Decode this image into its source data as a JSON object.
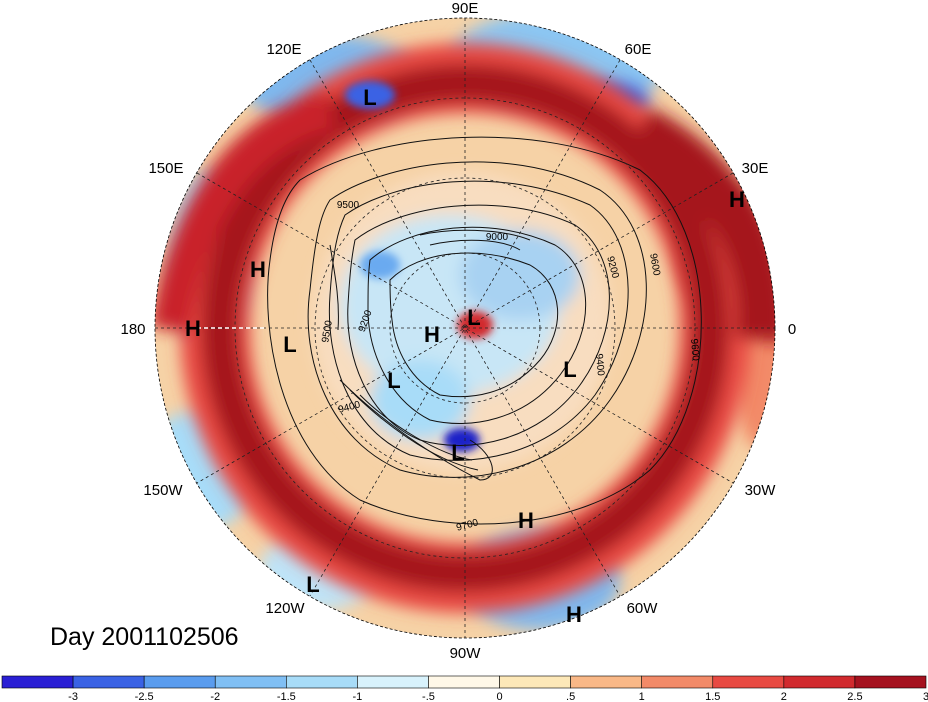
{
  "map": {
    "title": "Day 2001102506",
    "projection": "polar stereographic, north pole",
    "longitude_labels": {
      "lon_90e": "90E",
      "lon_60e": "60E",
      "lon_30e": "30E",
      "lon_0": "0",
      "lon_30w": "30W",
      "lon_60w": "60W",
      "lon_90w": "90W",
      "lon_120w": "120W",
      "lon_150w": "150W",
      "lon_180": "180",
      "lon_150e": "150E",
      "lon_120e": "120E"
    },
    "pressure_centers": {
      "h1": "H",
      "h2": "H",
      "h3": "H",
      "h4": "H",
      "h5": "H",
      "h6": "H",
      "l1": "L",
      "l2": "L",
      "l3": "L",
      "l4": "L",
      "l5": "L",
      "l6": "L",
      "l7": "L"
    },
    "contour_labels": {
      "c1": "9500",
      "c2": "9000",
      "c3": "9600",
      "c4": "9200",
      "c5": "9400",
      "c6": "9600",
      "c7": "9500",
      "c8": "9200",
      "c9": "9400",
      "c10": "9700"
    },
    "colors": {
      "strong_positive": "#a5121f",
      "strong_negative": "#1a22c8",
      "neutral": "#fdf6e0"
    }
  },
  "colorbar": {
    "tick_labels": [
      "-3",
      "-2.5",
      "-2",
      "-1.5",
      "-1",
      "-.5",
      "0",
      ".5",
      "1",
      "1.5",
      "2",
      "2.5",
      "3"
    ],
    "colors": [
      "#2a1fd4",
      "#3a62e4",
      "#5a9cee",
      "#80bff4",
      "#a8dcf8",
      "#d8f2fc",
      "#fff8e8",
      "#fde8b8",
      "#f9b887",
      "#f28a68",
      "#e84a42",
      "#d12a2e",
      "#a5121f"
    ]
  }
}
